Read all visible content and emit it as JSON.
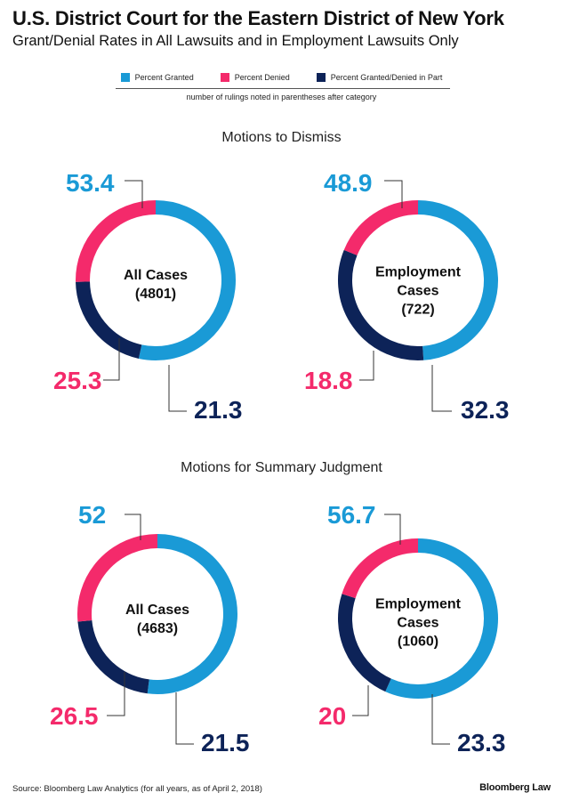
{
  "header": {
    "title": "U.S. District Court for the Eastern District of New York",
    "subtitle": "Grant/Denial Rates in All Lawsuits and in Employment Lawsuits Only"
  },
  "legend": {
    "items": [
      {
        "label": "Percent Granted",
        "color": "#1a9ad6"
      },
      {
        "label": "Percent Denied",
        "color": "#f42a6b"
      },
      {
        "label": "Percent Granted/Denied in Part",
        "color": "#0d2358"
      }
    ],
    "note": "number of rulings noted in parentheses after category"
  },
  "sections": [
    {
      "title": "Motions to Dismiss"
    },
    {
      "title": "Motions for Summary Judgment"
    }
  ],
  "chart_data": [
    {
      "type": "pie",
      "donut": true,
      "section": "Motions to Dismiss",
      "center_lines": [
        "All Cases",
        "(4801)"
      ],
      "series": [
        {
          "name": "Percent Granted",
          "value": 53.4,
          "color": "#1a9ad6"
        },
        {
          "name": "Percent Granted/Denied in Part",
          "value": 21.3,
          "color": "#0d2358"
        },
        {
          "name": "Percent Denied",
          "value": 25.3,
          "color": "#f42a6b"
        }
      ]
    },
    {
      "type": "pie",
      "donut": true,
      "section": "Motions to Dismiss",
      "center_lines": [
        "Employment",
        "Cases",
        "(722)"
      ],
      "series": [
        {
          "name": "Percent Granted",
          "value": 48.9,
          "color": "#1a9ad6"
        },
        {
          "name": "Percent Granted/Denied in Part",
          "value": 32.3,
          "color": "#0d2358"
        },
        {
          "name": "Percent Denied",
          "value": 18.8,
          "color": "#f42a6b"
        }
      ]
    },
    {
      "type": "pie",
      "donut": true,
      "section": "Motions for Summary Judgment",
      "center_lines": [
        "All Cases",
        "(4683)"
      ],
      "series": [
        {
          "name": "Percent Granted",
          "value": 52,
          "color": "#1a9ad6"
        },
        {
          "name": "Percent Granted/Denied in Part",
          "value": 21.5,
          "color": "#0d2358"
        },
        {
          "name": "Percent Denied",
          "value": 26.5,
          "color": "#f42a6b"
        }
      ]
    },
    {
      "type": "pie",
      "donut": true,
      "section": "Motions for Summary Judgment",
      "center_lines": [
        "Employment",
        "Cases",
        "(1060)"
      ],
      "series": [
        {
          "name": "Percent Granted",
          "value": 56.7,
          "color": "#1a9ad6"
        },
        {
          "name": "Percent Granted/Denied in Part",
          "value": 23.3,
          "color": "#0d2358"
        },
        {
          "name": "Percent Denied",
          "value": 20,
          "color": "#f42a6b"
        }
      ]
    }
  ],
  "footer": {
    "source": "Source: Bloomberg Law Analytics (for all years, as of April 2, 2018)",
    "brand": "Bloomberg Law"
  }
}
